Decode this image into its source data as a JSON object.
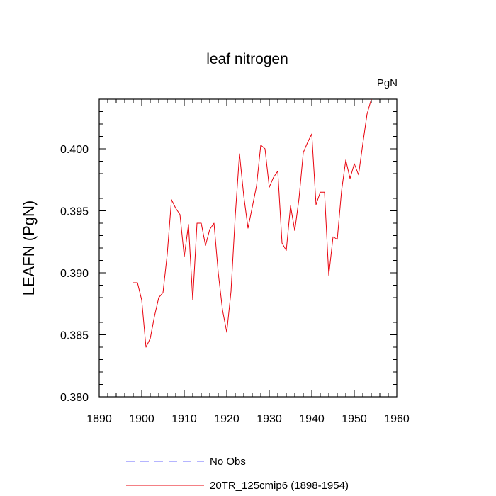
{
  "chart_data": {
    "type": "line",
    "title": "leaf nitrogen",
    "units": "PgN",
    "ylabel": "LEAFN  (PgN)",
    "xlabel": "",
    "xlim": [
      1890,
      1960
    ],
    "ylim": [
      0.38,
      0.404
    ],
    "x_ticks": [
      1890,
      1900,
      1910,
      1920,
      1930,
      1940,
      1950,
      1960
    ],
    "x_tick_labels": [
      "1890",
      "1900",
      "1910",
      "1920",
      "1930",
      "1940",
      "1950",
      "1960"
    ],
    "y_ticks": [
      0.38,
      0.385,
      0.39,
      0.395,
      0.4
    ],
    "y_tick_labels": [
      "0.380",
      "0.385",
      "0.390",
      "0.395",
      "0.400"
    ],
    "legend_position": "bottom-left, below plot",
    "series": [
      {
        "name": "No Obs",
        "style": "dashed",
        "color": "#6b6bff",
        "x": [],
        "values": []
      },
      {
        "name": "20TR_125cmip6 (1898-1954)",
        "style": "solid",
        "color": "#e8000b",
        "x": [
          1898,
          1899,
          1900,
          1901,
          1902,
          1903,
          1904,
          1905,
          1906,
          1907,
          1908,
          1909,
          1910,
          1911,
          1912,
          1913,
          1914,
          1915,
          1916,
          1917,
          1918,
          1919,
          1920,
          1921,
          1922,
          1923,
          1924,
          1925,
          1926,
          1927,
          1928,
          1929,
          1930,
          1931,
          1932,
          1933,
          1934,
          1935,
          1936,
          1937,
          1938,
          1939,
          1940,
          1941,
          1942,
          1943,
          1944,
          1945,
          1946,
          1947,
          1948,
          1949,
          1950,
          1951,
          1952,
          1953,
          1954
        ],
        "values": [
          0.3892,
          0.3892,
          0.3878,
          0.384,
          0.3847,
          0.3865,
          0.388,
          0.3884,
          0.3915,
          0.3959,
          0.3952,
          0.3947,
          0.3913,
          0.3939,
          0.3878,
          0.394,
          0.394,
          0.3922,
          0.3935,
          0.394,
          0.39,
          0.387,
          0.3852,
          0.3885,
          0.3946,
          0.3996,
          0.3962,
          0.3936,
          0.3953,
          0.397,
          0.4003,
          0.4,
          0.3969,
          0.3977,
          0.3982,
          0.3924,
          0.3918,
          0.3954,
          0.3934,
          0.396,
          0.3997,
          0.4005,
          0.4012,
          0.3955,
          0.3965,
          0.3965,
          0.3898,
          0.3929,
          0.3927,
          0.3966,
          0.3991,
          0.3976,
          0.3988,
          0.3979,
          0.4004,
          0.4028,
          0.404
        ]
      }
    ]
  }
}
